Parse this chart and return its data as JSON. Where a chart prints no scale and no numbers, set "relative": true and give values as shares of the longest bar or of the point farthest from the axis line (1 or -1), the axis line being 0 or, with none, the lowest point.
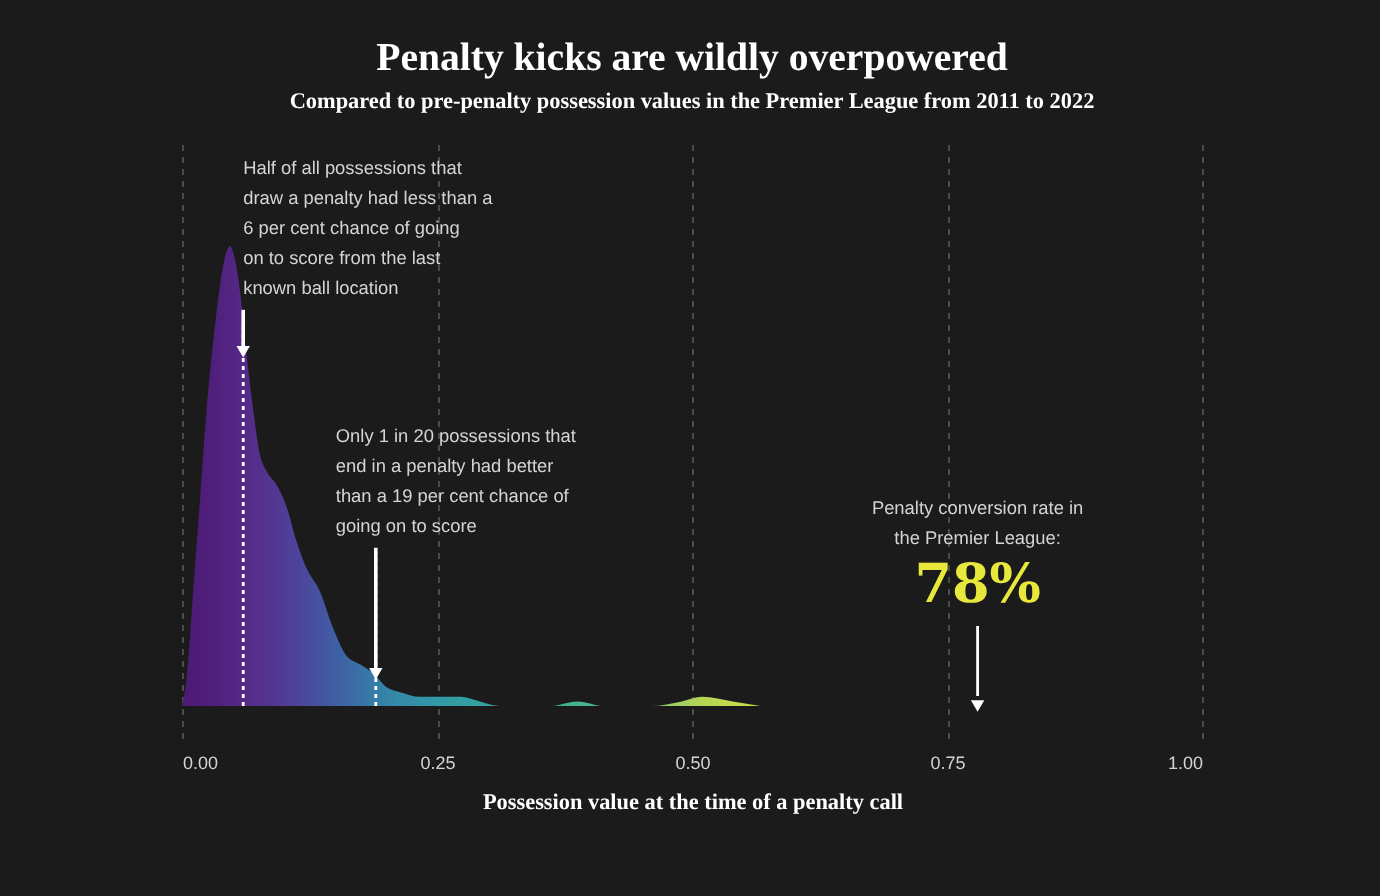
{
  "chart_data": {
    "type": "area",
    "title": "Penalty kicks are wildly overpowered",
    "subtitle": "Compared to pre-penalty possession values in the Premier League from 2011 to 2022",
    "xlabel": "Possession value at the time of a penalty call",
    "relative": true,
    "x": [
      0.0,
      0.005,
      0.011,
      0.018,
      0.024,
      0.031,
      0.037,
      0.044,
      0.047,
      0.052,
      0.057,
      0.063,
      0.07,
      0.076,
      0.083,
      0.093,
      0.103,
      0.112,
      0.122,
      0.135,
      0.148,
      0.161,
      0.175,
      0.188,
      0.201,
      0.214,
      0.233,
      0.253,
      0.273,
      0.292,
      0.312,
      0.335,
      0.36,
      0.388,
      0.414,
      0.44,
      0.46,
      0.49,
      0.51,
      0.54,
      0.567
    ],
    "values": [
      0,
      0.07,
      0.25,
      0.46,
      0.64,
      0.8,
      0.91,
      0.99,
      1,
      0.97,
      0.9,
      0.77,
      0.64,
      0.55,
      0.51,
      0.48,
      0.43,
      0.36,
      0.3,
      0.25,
      0.17,
      0.11,
      0.09,
      0.07,
      0.04,
      0.03,
      0.02,
      0.02,
      0.02,
      0.01,
      0,
      0,
      0,
      0.01,
      0,
      0,
      0,
      0.01,
      0.02,
      0.01,
      0
    ],
    "colors": [
      "#4b1a72",
      "#4c1b74",
      "#4d1c76",
      "#4e1d78",
      "#4f1e7a",
      "#501f7c",
      "#51217e",
      "#522380",
      "#522482",
      "#532684",
      "#542886",
      "#552a88",
      "#552d8b",
      "#55308e",
      "#543390",
      "#523893",
      "#4f3e97",
      "#4c439a",
      "#494a9d",
      "#4553a0",
      "#415ca3",
      "#3d66a5",
      "#3a71a7",
      "#377ba8",
      "#3584a8",
      "#348ba8",
      "#3393a7",
      "#3299a5",
      "#329ea2",
      "#33a29f",
      "#35a69b",
      "#38a997",
      "#3dad93",
      "#45b28e",
      "#55b888",
      "#6ec07c",
      "#84c670",
      "#a4d05e",
      "#b4d554",
      "#c2da4c",
      "#cadd46"
    ],
    "xlim": [
      0,
      1
    ],
    "xticks": [
      {
        "value": 0,
        "label": "0.00"
      },
      {
        "value": 0.25,
        "label": "0.25"
      },
      {
        "value": 0.5,
        "label": "0.50"
      },
      {
        "value": 0.75,
        "label": "0.75"
      },
      {
        "value": 1,
        "label": "1.00"
      }
    ],
    "grid": "x",
    "ref_lines": [
      {
        "axis": "x",
        "value": 0.06,
        "color": "#ffffff",
        "line_style": "dotted"
      },
      {
        "axis": "x",
        "value": 0.19,
        "color": "#ffffff",
        "line_style": "dotted"
      },
      {
        "axis": "x",
        "value": 0.78,
        "color": "#ffffff"
      }
    ],
    "annotations": [
      {
        "text": "Half of all possessions that\ndraw a penalty had less than a\n6 per cent chance of going\non to score from the last\nknown ball location",
        "x": 0.06,
        "y": 0.77
      },
      {
        "text": "Only 1 in 20 possessions that\nend in a penalty had better\nthan a 19 per cent chance of\ngoing on to score",
        "x": 0.19,
        "y": 0.07
      },
      "Penalty conversion rate in\nthe Premier League:",
      {
        "text": "78%",
        "x": 0.78,
        "y": 0
      }
    ]
  }
}
